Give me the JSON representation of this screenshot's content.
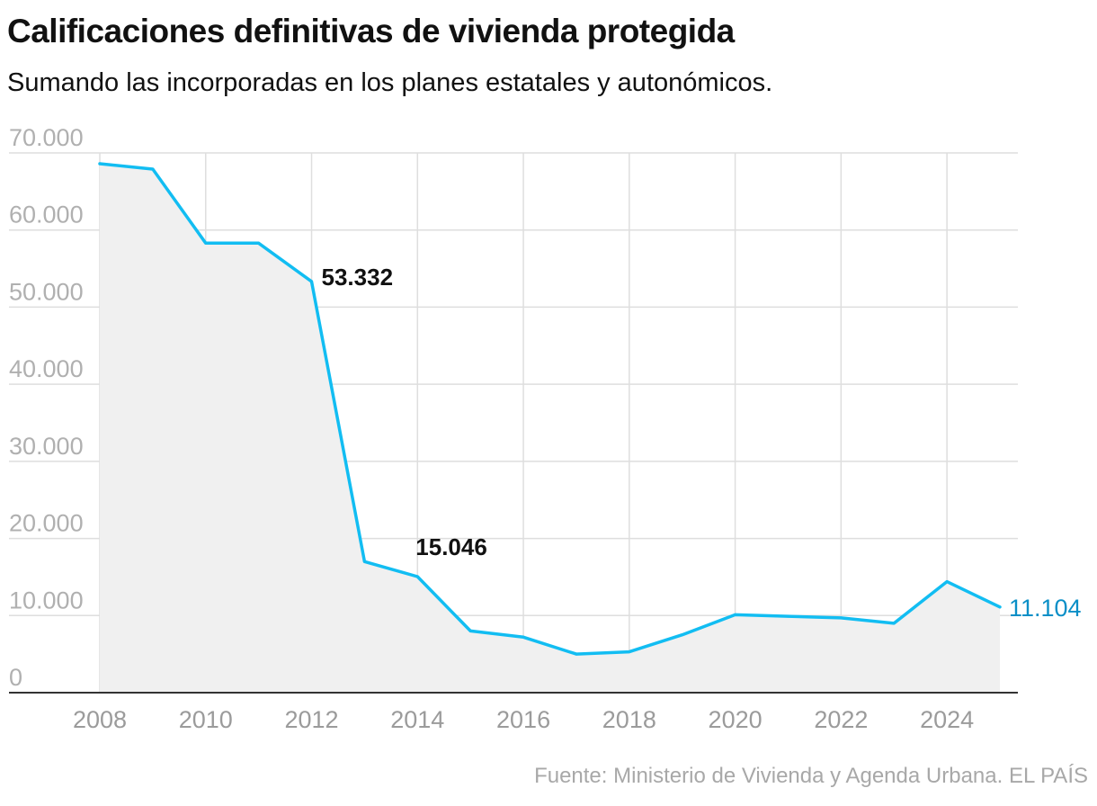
{
  "header": {
    "title": "Calificaciones definitivas de vivienda protegida",
    "subtitle": "Sumando las incorporadas en los planes estatales y autonómicos."
  },
  "footer": {
    "source": "Fuente: Ministerio de Vivienda y Agenda Urbana. EL PAÍS"
  },
  "colors": {
    "line": "#12bdf2",
    "area": "#f0f0f0",
    "grid": "#dedede",
    "baseline": "#333333",
    "last_label": "#0a8fc7"
  },
  "chart_data": {
    "type": "area",
    "title": "Calificaciones definitivas de vivienda protegida",
    "subtitle": "Sumando las incorporadas en los planes estatales y autonómicos.",
    "x": [
      2008,
      2009,
      2010,
      2011,
      2012,
      2013,
      2014,
      2015,
      2016,
      2017,
      2018,
      2019,
      2020,
      2021,
      2022,
      2023,
      2024,
      2025
    ],
    "series": [
      {
        "values": [
          68600,
          67900,
          58300,
          58300,
          53332,
          17000,
          15046,
          8000,
          7200,
          5000,
          5300,
          7500,
          10100,
          9900,
          9700,
          9000,
          14400,
          11104
        ]
      }
    ],
    "ylim": [
      0,
      70000
    ],
    "yticks": [
      0,
      10000,
      20000,
      30000,
      40000,
      50000,
      60000,
      70000
    ],
    "ytick_labels": [
      "0",
      "10.000",
      "20.000",
      "30.000",
      "40.000",
      "50.000",
      "60.000",
      "70.000"
    ],
    "xticks": [
      2008,
      2010,
      2012,
      2014,
      2016,
      2018,
      2020,
      2022,
      2024
    ],
    "xtick_labels": [
      "2008",
      "2010",
      "2012",
      "2014",
      "2016",
      "2018",
      "2020",
      "2022",
      "2024"
    ],
    "annotations": [
      {
        "x": 2012,
        "y": 53332,
        "label": "53.332"
      },
      {
        "x": 2014,
        "y": 15046,
        "label": "15.046"
      }
    ],
    "last_value_label": "11.104",
    "grid": true,
    "xlabel": "",
    "ylabel": ""
  }
}
